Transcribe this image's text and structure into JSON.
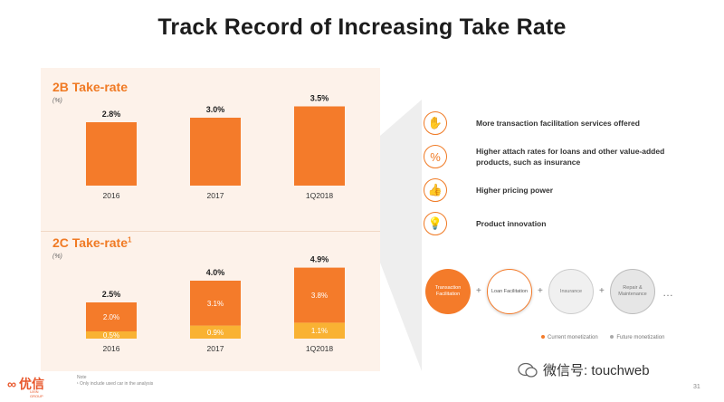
{
  "title": "Track Record of Increasing Take Rate",
  "chart_data": [
    {
      "type": "bar",
      "title": "2B Take-rate",
      "unit": "(%)",
      "categories": [
        "2016",
        "2017",
        "1Q2018"
      ],
      "values": [
        2.8,
        3.0,
        3.5
      ],
      "labels": [
        "2.8%",
        "3.0%",
        "3.5%"
      ]
    },
    {
      "type": "bar",
      "stacked": true,
      "title": "2C Take-rate",
      "title_sup": "1",
      "unit": "(%)",
      "categories": [
        "2016",
        "2017",
        "1Q2018"
      ],
      "totals": [
        2.5,
        4.0,
        4.9
      ],
      "total_labels": [
        "2.5%",
        "4.0%",
        "4.9%"
      ],
      "series": [
        {
          "values": [
            0.5,
            0.9,
            1.1
          ],
          "labels": [
            "0.5%",
            "0.9%",
            "1.1%"
          ],
          "color": "#f9b233"
        },
        {
          "values": [
            2.0,
            3.1,
            3.8
          ],
          "labels": [
            "2.0%",
            "3.1%",
            "3.8%"
          ],
          "color": "#f47b2a"
        }
      ]
    }
  ],
  "bullets": [
    {
      "icon": "hand-icon",
      "glyph": "✋",
      "text": "More transaction facilitation services offered"
    },
    {
      "icon": "percent-icon",
      "glyph": "%",
      "text": "Higher attach rates for loans and other value-added products, such as insurance"
    },
    {
      "icon": "thumbs-up-icon",
      "glyph": "👍",
      "text": "Higher pricing power"
    },
    {
      "icon": "lightbulb-icon",
      "glyph": "💡",
      "text": "Product innovation"
    }
  ],
  "flow": {
    "items": [
      "Transaction Facilitation",
      "Loan Facilitation",
      "Insurance",
      "Repair & Maintenance"
    ],
    "plus": "+",
    "ellipsis": "…"
  },
  "legend": {
    "current": "Current monetization",
    "future": "Future monetization"
  },
  "colors": {
    "accent": "#f47b2a",
    "accent_light": "#f9b233",
    "panel": "#fdf2ea"
  },
  "logo": {
    "text": "优信",
    "sub": "UXIN GROUP"
  },
  "note": {
    "label": "Note",
    "line": "¹ Only include used car in the analysis"
  },
  "watermark": "微信号: touchweb",
  "page": "31"
}
